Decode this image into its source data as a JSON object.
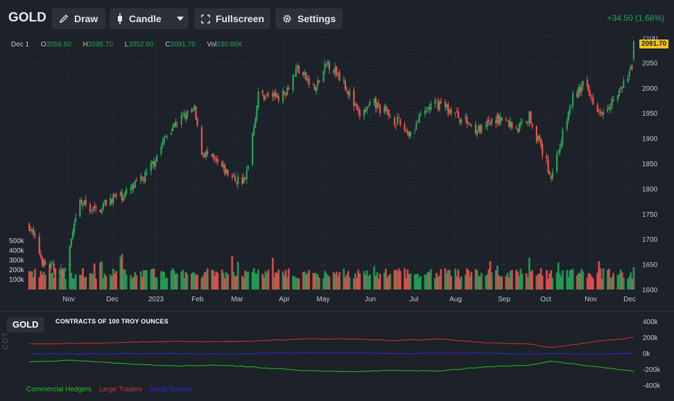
{
  "toolbar": {
    "symbol": "GOLD",
    "draw_label": "Draw",
    "candle_label": "Candle",
    "fullscreen_label": "Fullscreen",
    "settings_label": "Settings",
    "change": "+34.50 (1.68%)",
    "change_color": "#26a65b"
  },
  "ohlc": {
    "date": "Dec 1",
    "o_key": "O",
    "o_val": "2056.50",
    "h_key": "H",
    "h_val": "2095.70",
    "l_key": "L",
    "l_val": "2052.60",
    "c_key": "C",
    "c_val": "2091.70",
    "vol_key": "Vol",
    "vol_val": "230.88K"
  },
  "last_price": "2091.70",
  "cot": {
    "symbol": "GOLD",
    "title": "CONTRACTS OF 100 TROY OUNCES",
    "axis_label": "COT",
    "legend": [
      {
        "label": "Commercial Hedgers",
        "color": "#22c322"
      },
      {
        "label": "Large Traders",
        "color": "#e03030"
      },
      {
        "label": "Small Traders",
        "color": "#2b2bd6"
      }
    ]
  },
  "colors": {
    "up": "#26a65b",
    "down": "#ef5350",
    "background": "#1d2129",
    "grid": "#2d3240"
  },
  "chart_data": [
    {
      "type": "candlestick",
      "title": "GOLD",
      "x_tick_labels": [
        "Nov",
        "Dec",
        "2023",
        "Feb",
        "Mar",
        "Apr",
        "May",
        "Jun",
        "Jul",
        "Aug",
        "Sep",
        "Oct",
        "Nov",
        "Dec"
      ],
      "y_ticks": [
        1600,
        1650,
        1700,
        1750,
        1800,
        1850,
        1900,
        1950,
        2000,
        2050,
        2100
      ],
      "ylim": [
        1600,
        2100
      ],
      "volume_ticks": [
        "100k",
        "200k",
        "300k",
        "400k",
        "500k"
      ],
      "volume_ylim": [
        0,
        500000
      ],
      "grid": true,
      "close_path": [
        [
          "2022-10-10",
          1728
        ],
        [
          "2022-10-20",
          1650
        ],
        [
          "2022-11-03",
          1632
        ],
        [
          "2022-11-14",
          1773
        ],
        [
          "2022-11-25",
          1755
        ],
        [
          "2022-12-05",
          1780
        ],
        [
          "2022-12-15",
          1788
        ],
        [
          "2022-12-30",
          1826
        ],
        [
          "2023-01-15",
          1920
        ],
        [
          "2023-01-26",
          1945
        ],
        [
          "2023-02-01",
          1955
        ],
        [
          "2023-02-05",
          1878
        ],
        [
          "2023-02-28",
          1820
        ],
        [
          "2023-03-08",
          1815
        ],
        [
          "2023-03-17",
          1985
        ],
        [
          "2023-04-03",
          1985
        ],
        [
          "2023-04-13",
          2040
        ],
        [
          "2023-04-25",
          1995
        ],
        [
          "2023-05-04",
          2050
        ],
        [
          "2023-05-15",
          2015
        ],
        [
          "2023-05-25",
          1945
        ],
        [
          "2023-06-05",
          1968
        ],
        [
          "2023-06-20",
          1935
        ],
        [
          "2023-06-29",
          1910
        ],
        [
          "2023-07-12",
          1960
        ],
        [
          "2023-07-20",
          1970
        ],
        [
          "2023-08-01",
          1945
        ],
        [
          "2023-08-17",
          1915
        ],
        [
          "2023-08-30",
          1940
        ],
        [
          "2023-09-12",
          1920
        ],
        [
          "2023-09-20",
          1945
        ],
        [
          "2023-10-05",
          1825
        ],
        [
          "2023-10-20",
          1980
        ],
        [
          "2023-10-27",
          2005
        ],
        [
          "2023-11-08",
          1955
        ],
        [
          "2023-11-20",
          1985
        ],
        [
          "2023-11-30",
          2040
        ],
        [
          "2023-12-01",
          2091.7
        ]
      ],
      "last_candle": {
        "date": "2023-12-01",
        "open": 2056.5,
        "high": 2095.7,
        "low": 2052.6,
        "close": 2091.7,
        "volume": 230880
      }
    },
    {
      "type": "line",
      "title": "CONTRACTS OF 100 TROY OUNCES",
      "y_ticks": [
        "400k",
        "200k",
        "0k",
        "-200k",
        "-400k"
      ],
      "ylim": [
        -400000,
        400000
      ],
      "x": [
        "2022-10-10",
        "2022-11-10",
        "2022-12-20",
        "2023-01-20",
        "2023-02-20",
        "2023-03-10",
        "2023-04-20",
        "2023-05-20",
        "2023-06-20",
        "2023-07-20",
        "2023-08-20",
        "2023-09-20",
        "2023-10-05",
        "2023-11-10",
        "2023-12-01"
      ],
      "series": [
        {
          "name": "Commercial Hedgers",
          "values": [
            -110000,
            -90000,
            -140000,
            -160000,
            -150000,
            -170000,
            -220000,
            -230000,
            -215000,
            -225000,
            -170000,
            -150000,
            -100000,
            -180000,
            -230000
          ]
        },
        {
          "name": "Large Traders",
          "values": [
            120000,
            120000,
            140000,
            150000,
            145000,
            150000,
            180000,
            180000,
            160000,
            180000,
            130000,
            115000,
            70000,
            160000,
            195000
          ]
        },
        {
          "name": "Small Traders",
          "values": [
            -10000,
            -10000,
            -5000,
            -5000,
            -10000,
            -5000,
            5000,
            5000,
            -5000,
            0,
            0,
            -10000,
            -5000,
            -10000,
            -5000
          ]
        }
      ]
    }
  ]
}
